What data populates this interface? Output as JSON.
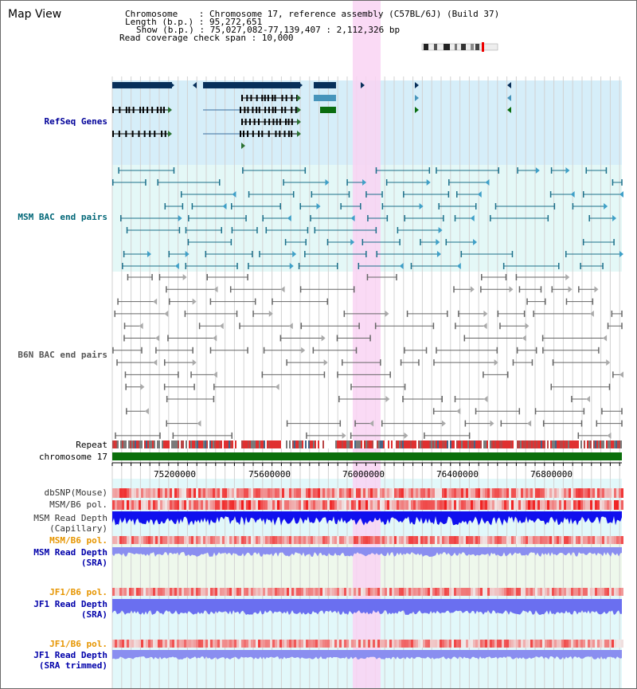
{
  "header": {
    "title": "Map View",
    "chromosome_line": "Chromosome    : Chromosome 17, reference assembly (C57BL/6J) (Build 37)",
    "length_line": "Length (b.p.) : 95,272,651",
    "show_line": "Show (b.p.) : 75,027,082-77,139,407 : 2,112,326 bp",
    "coverage_line": "Read coverage check span : 10,000"
  },
  "tracks": {
    "refseq": "RefSeq Genes",
    "msm_bac": "MSM BAC end pairs",
    "b6n_bac": "B6N BAC end pairs",
    "repeat": "Repeat",
    "chromosome": "chromosome 17",
    "dbsnp": "dbSNP(Mouse)",
    "msm_b6_pol_cap": "MSM/B6 pol.",
    "msm_depth_cap": "MSM Read Depth\n(Capillary)",
    "msm_b6_pol_sra": "MSM/B6 pol.",
    "msm_depth_sra": "MSM Read Depth\n(SRA)",
    "jf1_b6_pol_1": "JF1/B6 pol.",
    "jf1_depth_sra": "JF1 Read Depth\n(SRA)",
    "jf1_b6_pol_2": "JF1/B6 pol.",
    "jf1_depth_trim": "JF1 Read Depth\n(SRA trimmed)"
  },
  "axis": {
    "ticks": [
      "75200000",
      "75600000",
      "76000000",
      "76400000",
      "76800000"
    ]
  },
  "colors": {
    "refseq_label": "#000099",
    "msm_label": "#006677",
    "b6n_label": "#555555",
    "depth_label": "#0000aa",
    "pol_label": "#e69500",
    "highlight": "#f9d3f3"
  }
}
